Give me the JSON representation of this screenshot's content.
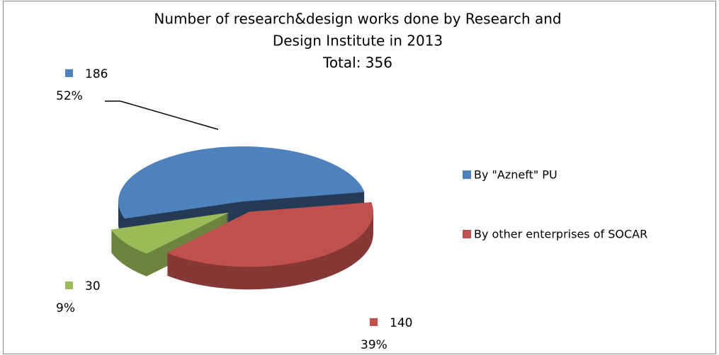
{
  "chart_data": {
    "type": "pie3d",
    "title": [
      "Number of research&design works done by Research and",
      "Design Institute in 2013"
    ],
    "subtitle": "Total: 356",
    "categories": [
      "By \"Azneft\" PU",
      "By other enterprises of SOCAR",
      null
    ],
    "values": [
      186,
      140,
      30
    ],
    "percent_labels": [
      "52%",
      "39%",
      "9%"
    ],
    "colors": [
      "#4f81bd",
      "#c0504d",
      "#9bbb59"
    ],
    "legend": "right"
  }
}
